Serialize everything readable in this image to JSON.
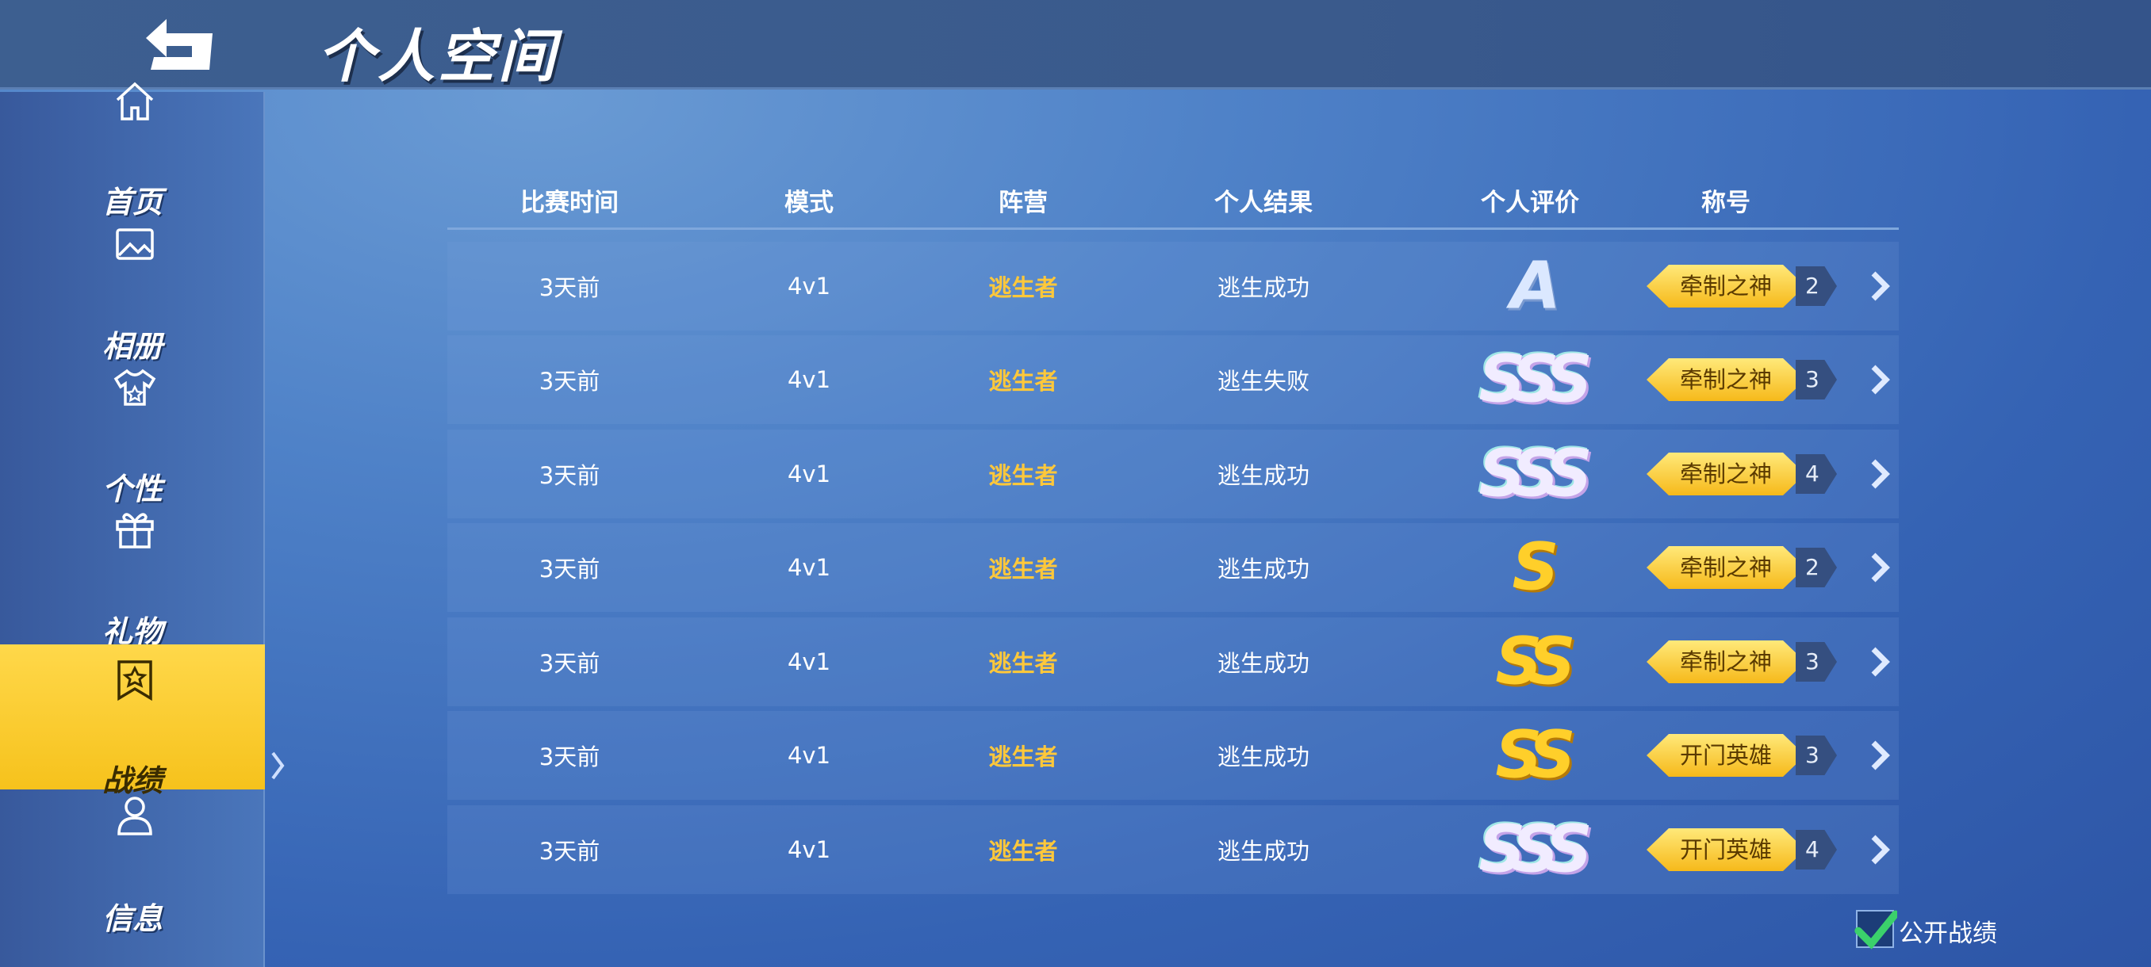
{
  "header": {
    "title": "个人空间",
    "back_icon": "back-arrow-icon"
  },
  "sidebar": {
    "items": [
      {
        "label": "首页",
        "icon": "home-icon"
      },
      {
        "label": "相册",
        "icon": "image-icon"
      },
      {
        "label": "个性",
        "icon": "shirt-icon"
      },
      {
        "label": "礼物",
        "icon": "gift-icon"
      },
      {
        "label": "战绩",
        "icon": "badge-star-icon",
        "active": true
      },
      {
        "label": "信息",
        "icon": "user-icon"
      }
    ]
  },
  "table": {
    "columns": [
      "比赛时间",
      "模式",
      "阵营",
      "个人结果",
      "个人评价",
      "称号"
    ],
    "rows": [
      {
        "time": "3天前",
        "mode": "4v1",
        "camp": "逃生者",
        "result": "逃生成功",
        "grade": "A",
        "title": "牵制之神",
        "count": "2"
      },
      {
        "time": "3天前",
        "mode": "4v1",
        "camp": "逃生者",
        "result": "逃生失败",
        "grade": "SSS",
        "title": "牵制之神",
        "count": "3"
      },
      {
        "time": "3天前",
        "mode": "4v1",
        "camp": "逃生者",
        "result": "逃生成功",
        "grade": "SSS",
        "title": "牵制之神",
        "count": "4"
      },
      {
        "time": "3天前",
        "mode": "4v1",
        "camp": "逃生者",
        "result": "逃生成功",
        "grade": "S",
        "title": "牵制之神",
        "count": "2"
      },
      {
        "time": "3天前",
        "mode": "4v1",
        "camp": "逃生者",
        "result": "逃生成功",
        "grade": "SS",
        "title": "牵制之神",
        "count": "3"
      },
      {
        "time": "3天前",
        "mode": "4v1",
        "camp": "逃生者",
        "result": "逃生成功",
        "grade": "SS",
        "title": "开门英雄",
        "count": "3"
      },
      {
        "time": "3天前",
        "mode": "4v1",
        "camp": "逃生者",
        "result": "逃生成功",
        "grade": "SSS",
        "title": "开门英雄",
        "count": "4"
      }
    ]
  },
  "public_record": {
    "label": "公开战绩",
    "checked": true
  },
  "colors": {
    "accent": "#f6c21c",
    "camp": "#ffc83a",
    "check": "#3bd16b"
  }
}
